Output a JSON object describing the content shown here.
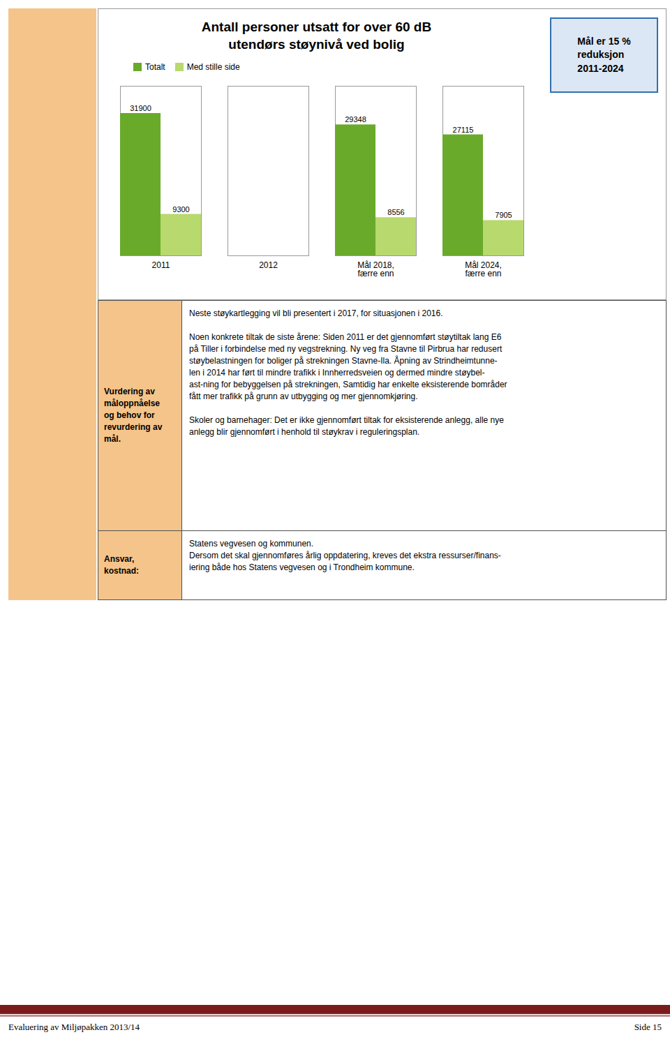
{
  "chart_data": {
    "type": "bar",
    "title": "Antall personer utsatt for over 60 dB\nutendørs støynivå ved bolig",
    "categories": [
      "2011",
      "2012",
      "Mål 2018,\nfærre enn",
      "Mål 2024,\nfærre enn"
    ],
    "series": [
      {
        "name": "Totalt",
        "color": "#6aaa2a",
        "values": [
          31900,
          null,
          29348,
          27115
        ]
      },
      {
        "name": "Med stille side",
        "color": "#b8d96e",
        "values": [
          9300,
          null,
          8556,
          7905
        ]
      }
    ],
    "ylim": [
      0,
      38000
    ],
    "yticks": [],
    "tick_labels": "x",
    "data_labels": true,
    "legend": "top-left",
    "grid": false,
    "annotations": [
      "Mål er 15 %\nreduksjon\n2011-2024",
      "Vurdering av\nmåloppnåelse\nog behov for\nrevurdering av\nmål.",
      "Neste støykartlegging vil bli presentert i 2017, for situasjonen i 2016.\n\nNoen konkrete tiltak de siste årene: Siden 2011 er det gjennomført støytiltak lang E6\npå Tiller i forbindelse med ny vegstrekning. Ny veg fra Stavne til Pirbrua har redusert\nstøybelastningen for boliger på strekningen Stavne-Ila. Åpning av Strindheimtunne-\nlen i 2014 har ført til mindre trafikk i Innherredsveien og dermed mindre støybel-\nast-ning for bebyggelsen på strekningen, Samtidig har enkelte eksisterende bområder\nfått mer trafikk på grunn av utbygging og mer gjennomkjøring.\n\nSkoler og barnehager: Det er ikke gjennomført tiltak for eksisterende anlegg, alle nye\nanlegg blir gjennomført i henhold til støykrav i reguleringsplan.",
      "Ansvar,\nkostnad:",
      "Statens vegvesen og kommunen.\nDersom det skal gjennomføres årlig oppdatering, kreves det ekstra ressurser/finans-\niering både hos Statens vegvesen og i Trondheim kommune.",
      "Evaluering av Miljøpakken 2013/14",
      "Side 15"
    ]
  }
}
